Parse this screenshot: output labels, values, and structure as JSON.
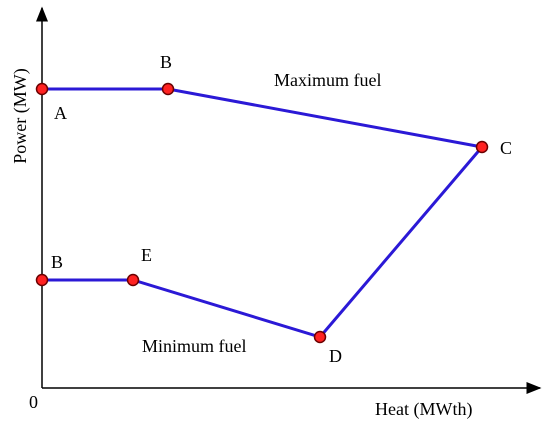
{
  "x_axis_label": "Heat (MWth)",
  "y_axis_label": "Power (MW)",
  "origin_label": "0",
  "regions": {
    "maximum_fuel": "Maximum fuel",
    "minimum_fuel": "Minimum fuel"
  },
  "points": {
    "A": "A",
    "B_top": "B",
    "C": "C",
    "D": "D",
    "E": "E",
    "B_bottom": "B"
  },
  "colors": {
    "boundary_line": "#2b19d6",
    "point_fill": "#ff2222",
    "point_stroke": "#6a0000",
    "axis": "#000000"
  }
}
